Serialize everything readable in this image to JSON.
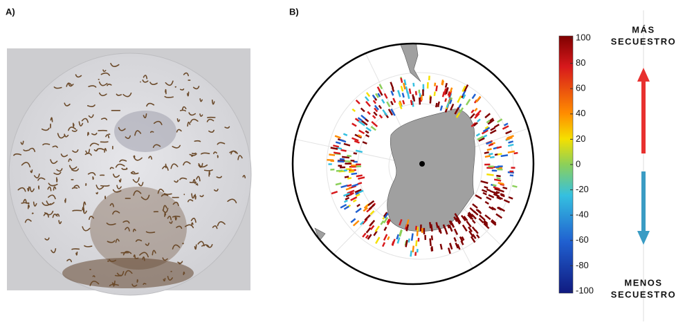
{
  "panel_a": {
    "label": "A)"
  },
  "panel_b": {
    "label": "B)",
    "colorbar": {
      "range": [
        -100,
        100
      ],
      "ticks": [
        100,
        80,
        60,
        40,
        20,
        0,
        -20,
        -40,
        -60,
        -80,
        -100
      ]
    }
  },
  "scale_arrows": {
    "top_label": [
      "MÁS",
      "SECUESTRO"
    ],
    "bottom_label": [
      "MENOS",
      "SECUESTRO"
    ]
  }
}
